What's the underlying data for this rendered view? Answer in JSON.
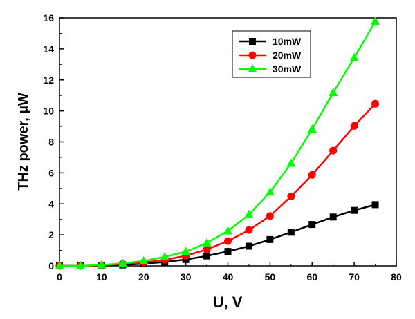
{
  "chart_data": {
    "type": "line",
    "title": "",
    "xlabel": "U, V",
    "ylabel": "THz power, µW",
    "xlim": [
      0,
      80
    ],
    "ylim": [
      0,
      16
    ],
    "xticks": [
      0,
      10,
      20,
      30,
      40,
      50,
      60,
      70,
      80
    ],
    "yticks": [
      0,
      2,
      4,
      6,
      8,
      10,
      12,
      14,
      16
    ],
    "grid": false,
    "legend_position": "top-right-inner",
    "x": [
      0,
      5,
      10,
      15,
      20,
      25,
      30,
      35,
      40,
      45,
      50,
      55,
      60,
      65,
      70,
      75
    ],
    "series": [
      {
        "name": "10mW",
        "color": "#000000",
        "marker": "square",
        "values": [
          0,
          0,
          0.02,
          0.06,
          0.14,
          0.25,
          0.41,
          0.64,
          0.93,
          1.27,
          1.7,
          2.17,
          2.67,
          3.15,
          3.58,
          3.95
        ]
      },
      {
        "name": "20mW",
        "color": "#ff0000",
        "marker": "circle",
        "values": [
          0,
          0,
          0.04,
          0.12,
          0.22,
          0.39,
          0.65,
          1.06,
          1.6,
          2.31,
          3.22,
          4.48,
          5.87,
          7.44,
          9.03,
          10.46
        ]
      },
      {
        "name": "30mW",
        "color": "#00ff00",
        "marker": "triangle",
        "values": [
          0,
          0,
          0.06,
          0.16,
          0.32,
          0.58,
          0.92,
          1.48,
          2.25,
          3.31,
          4.76,
          6.62,
          8.82,
          11.18,
          13.43,
          15.78
        ]
      }
    ]
  }
}
